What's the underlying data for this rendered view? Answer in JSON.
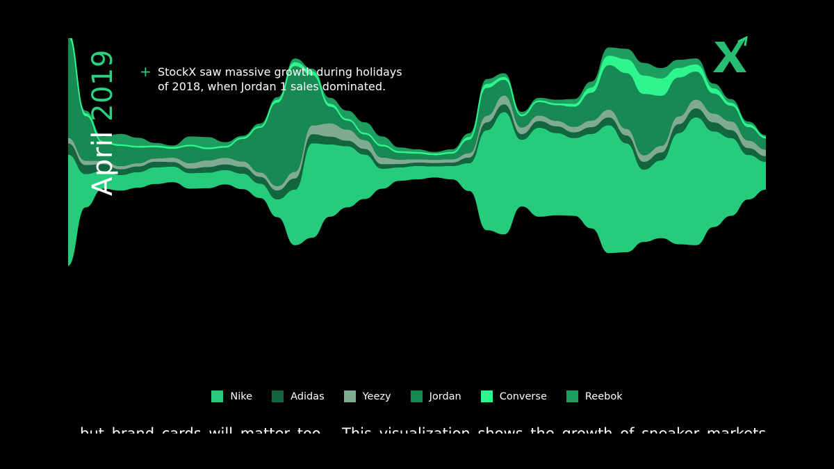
{
  "date_label": {
    "month": "April",
    "year": "2019"
  },
  "annotation": {
    "marker": "+",
    "text": "StockX saw massive growth during holidays of 2018, when Jordan 1 sales dominated."
  },
  "logo": {
    "icon": "stockx-x-icon",
    "color": "#2bd17f"
  },
  "cut_off_text": "...but brand cards will matter too... This visualization shows the growth of sneaker markets",
  "chart_data": {
    "type": "area",
    "subtype": "streamgraph",
    "title": "",
    "xlabel": "",
    "ylabel": "",
    "legend_position": "bottom-center",
    "grid": false,
    "x": [
      0,
      1,
      2,
      3,
      4,
      5,
      6,
      7,
      8,
      9,
      10,
      11,
      12,
      13,
      14,
      15,
      16,
      17,
      18,
      19,
      20,
      21,
      22,
      23,
      24,
      25,
      26,
      27,
      28,
      29,
      30,
      31,
      32,
      33,
      34,
      35,
      36,
      37,
      38,
      39,
      40
    ],
    "series": [
      {
        "name": "Nike",
        "color": "#25cc7c",
        "values": [
          100,
          30,
          16,
          14,
          14,
          15,
          14,
          14,
          14,
          13,
          14,
          13,
          16,
          50,
          85,
          65,
          55,
          40,
          18,
          12,
          12,
          10,
          12,
          25,
          90,
          110,
          60,
          80,
          74,
          70,
          85,
          115,
          98,
          65,
          70,
          100,
          115,
          86,
          70,
          40,
          25
        ]
      },
      {
        "name": "Adidas",
        "color": "#116640",
        "values": [
          10,
          8,
          6,
          5,
          5,
          5,
          4,
          4,
          5,
          5,
          6,
          6,
          8,
          10,
          8,
          7,
          5,
          5,
          4,
          3,
          3,
          3,
          3,
          5,
          7,
          7,
          5,
          6,
          6,
          5,
          6,
          7,
          7,
          7,
          7,
          8,
          8,
          8,
          7,
          6,
          5
        ]
      },
      {
        "name": "Yeezy",
        "color": "#7fab93",
        "values": [
          5,
          4,
          3,
          3,
          3,
          3,
          4,
          5,
          6,
          6,
          5,
          4,
          4,
          6,
          8,
          12,
          10,
          8,
          6,
          4,
          3,
          3,
          3,
          4,
          6,
          8,
          6,
          5,
          5,
          5,
          6,
          7,
          6,
          6,
          6,
          7,
          8,
          8,
          8,
          7,
          6
        ]
      },
      {
        "name": "Jordan",
        "color": "#168a52",
        "values": [
          90,
          40,
          16,
          18,
          14,
          10,
          8,
          15,
          10,
          9,
          20,
          40,
          75,
          95,
          45,
          15,
          8,
          5,
          10,
          6,
          5,
          4,
          5,
          12,
          25,
          14,
          10,
          12,
          14,
          18,
          25,
          40,
          50,
          55,
          45,
          35,
          25,
          18,
          14,
          12,
          10
        ]
      },
      {
        "name": "Converse",
        "color": "#2ef58d",
        "values": [
          3,
          2,
          1,
          1,
          1,
          1,
          1,
          1,
          1,
          1,
          1,
          1,
          2,
          3,
          3,
          2,
          1,
          1,
          1,
          1,
          1,
          1,
          1,
          2,
          3,
          2,
          1,
          1,
          1,
          2,
          4,
          8,
          12,
          16,
          15,
          8,
          6,
          4,
          2,
          2,
          1
        ]
      },
      {
        "name": "Reebok",
        "color": "#1d9e5f",
        "values": [
          4,
          3,
          5,
          10,
          8,
          3,
          2,
          8,
          10,
          4,
          2,
          3,
          3,
          4,
          3,
          6,
          8,
          10,
          8,
          4,
          3,
          2,
          3,
          4,
          5,
          4,
          3,
          3,
          4,
          5,
          6,
          8,
          10,
          12,
          10,
          8,
          6,
          5,
          4,
          3,
          2
        ]
      }
    ]
  }
}
